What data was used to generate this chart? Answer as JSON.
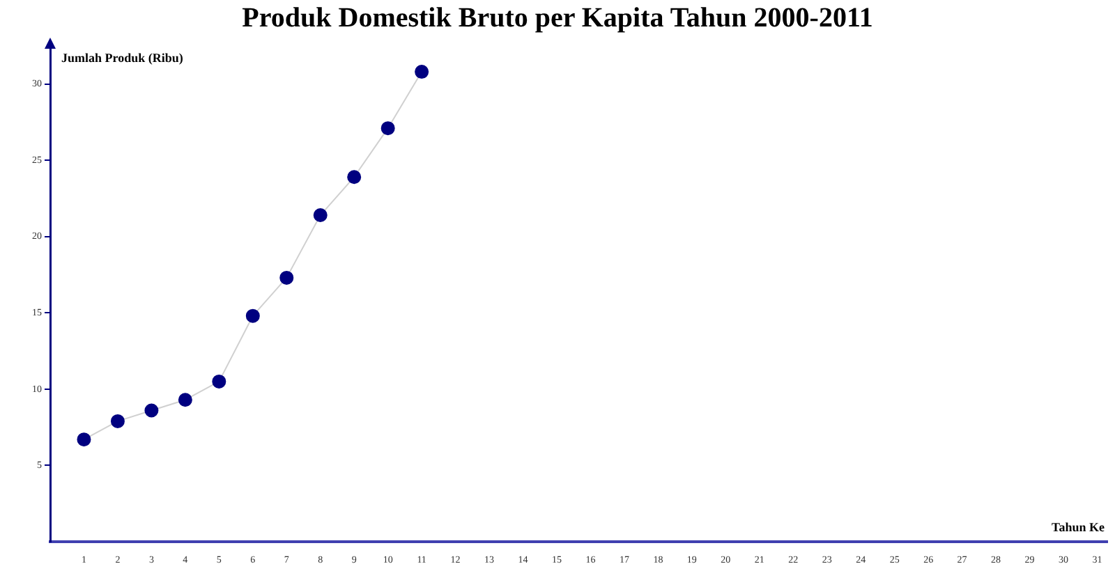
{
  "chart_data": {
    "type": "line",
    "title": "Produk Domestik Bruto per Kapita Tahun 2000-2011",
    "xlabel": "Tahun Ke",
    "ylabel": "Jumlah Produk (Ribu)",
    "x": [
      1,
      2,
      3,
      4,
      5,
      6,
      7,
      8,
      9,
      10,
      11
    ],
    "series": [
      {
        "color": "#000080",
        "values": [
          6.7,
          7.9,
          8.6,
          9.3,
          10.5,
          14.8,
          17.3,
          21.4,
          23.9,
          27.1,
          30.8
        ]
      }
    ],
    "xlim": [
      0,
      31.3
    ],
    "xticks": [
      1,
      2,
      3,
      4,
      5,
      6,
      7,
      8,
      9,
      10,
      11,
      12,
      13,
      14,
      15,
      16,
      17,
      18,
      19,
      20,
      21,
      22,
      23,
      24,
      25,
      26,
      27,
      28,
      29,
      30,
      31
    ],
    "ylim": [
      0,
      32.4
    ],
    "yticks": [
      5,
      10,
      15,
      20,
      25,
      30
    ],
    "grid": false,
    "legend": false,
    "marker": "circle",
    "line_style": "solid"
  }
}
